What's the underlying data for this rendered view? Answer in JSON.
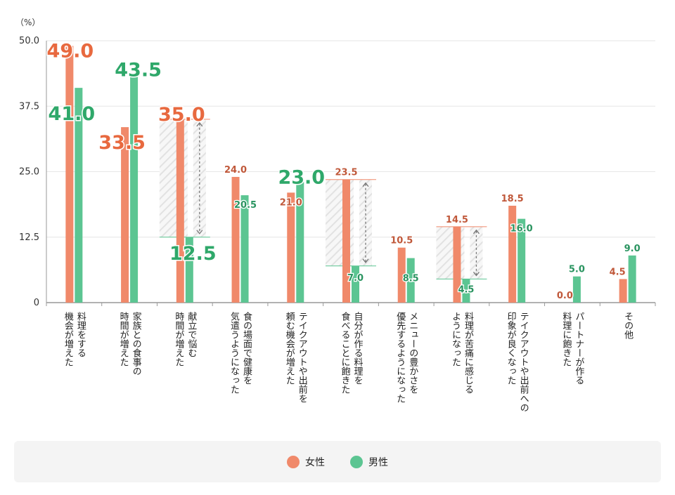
{
  "chart_data": {
    "type": "bar",
    "unit_label": "（%）",
    "ylim": [
      0,
      50
    ],
    "yticks": [
      "50.0",
      "37.5",
      "25.0",
      "12.5",
      "0"
    ],
    "categories": [
      [
        "料理をする",
        "機会が増えた"
      ],
      [
        "家族との食事の",
        "時間が増えた"
      ],
      [
        "献立で悩む",
        "時間が増えた"
      ],
      [
        "食の場面で健康を",
        "気遣うようになった"
      ],
      [
        "テイクアウトや出前を",
        "頼む機会が増えた"
      ],
      [
        "自分が作る料理を",
        "食べることに飽きた"
      ],
      [
        "メニューの豊かさを",
        "優先するようになった"
      ],
      [
        "料理が苦痛に感じる",
        "ようになった"
      ],
      [
        "テイクアウトや出前への",
        "印象が良くなった"
      ],
      [
        "パートナーが作る",
        "料理に飽きた"
      ],
      [
        "その他"
      ]
    ],
    "series": [
      {
        "name": "女性",
        "color": "#F0896A",
        "values": [
          49.0,
          33.5,
          35.0,
          24.0,
          21.0,
          23.5,
          10.5,
          14.5,
          18.5,
          0.0,
          4.5
        ],
        "labels": [
          "49.0",
          "33.5",
          "35.0",
          "24.0",
          "21.0",
          "23.5",
          "10.5",
          "14.5",
          "18.5",
          "0.0",
          "4.5"
        ]
      },
      {
        "name": "男性",
        "color": "#5CC592",
        "values": [
          41.0,
          43.5,
          12.5,
          20.5,
          23.0,
          7.0,
          8.5,
          4.5,
          16.0,
          5.0,
          9.0
        ],
        "labels": [
          "41.0",
          "43.5",
          "12.5",
          "20.5",
          "23.0",
          "7.0",
          "8.5",
          "4.5",
          "16.0",
          "5.0",
          "9.0"
        ]
      }
    ],
    "label_colors": {
      "female": "#E8693F",
      "male": "#2FA86A",
      "female_small": "#C0583A",
      "male_small": "#2A9460"
    },
    "gap_highlights": [
      2,
      5,
      7
    ]
  },
  "legend": {
    "female": "女性",
    "male": "男性"
  }
}
